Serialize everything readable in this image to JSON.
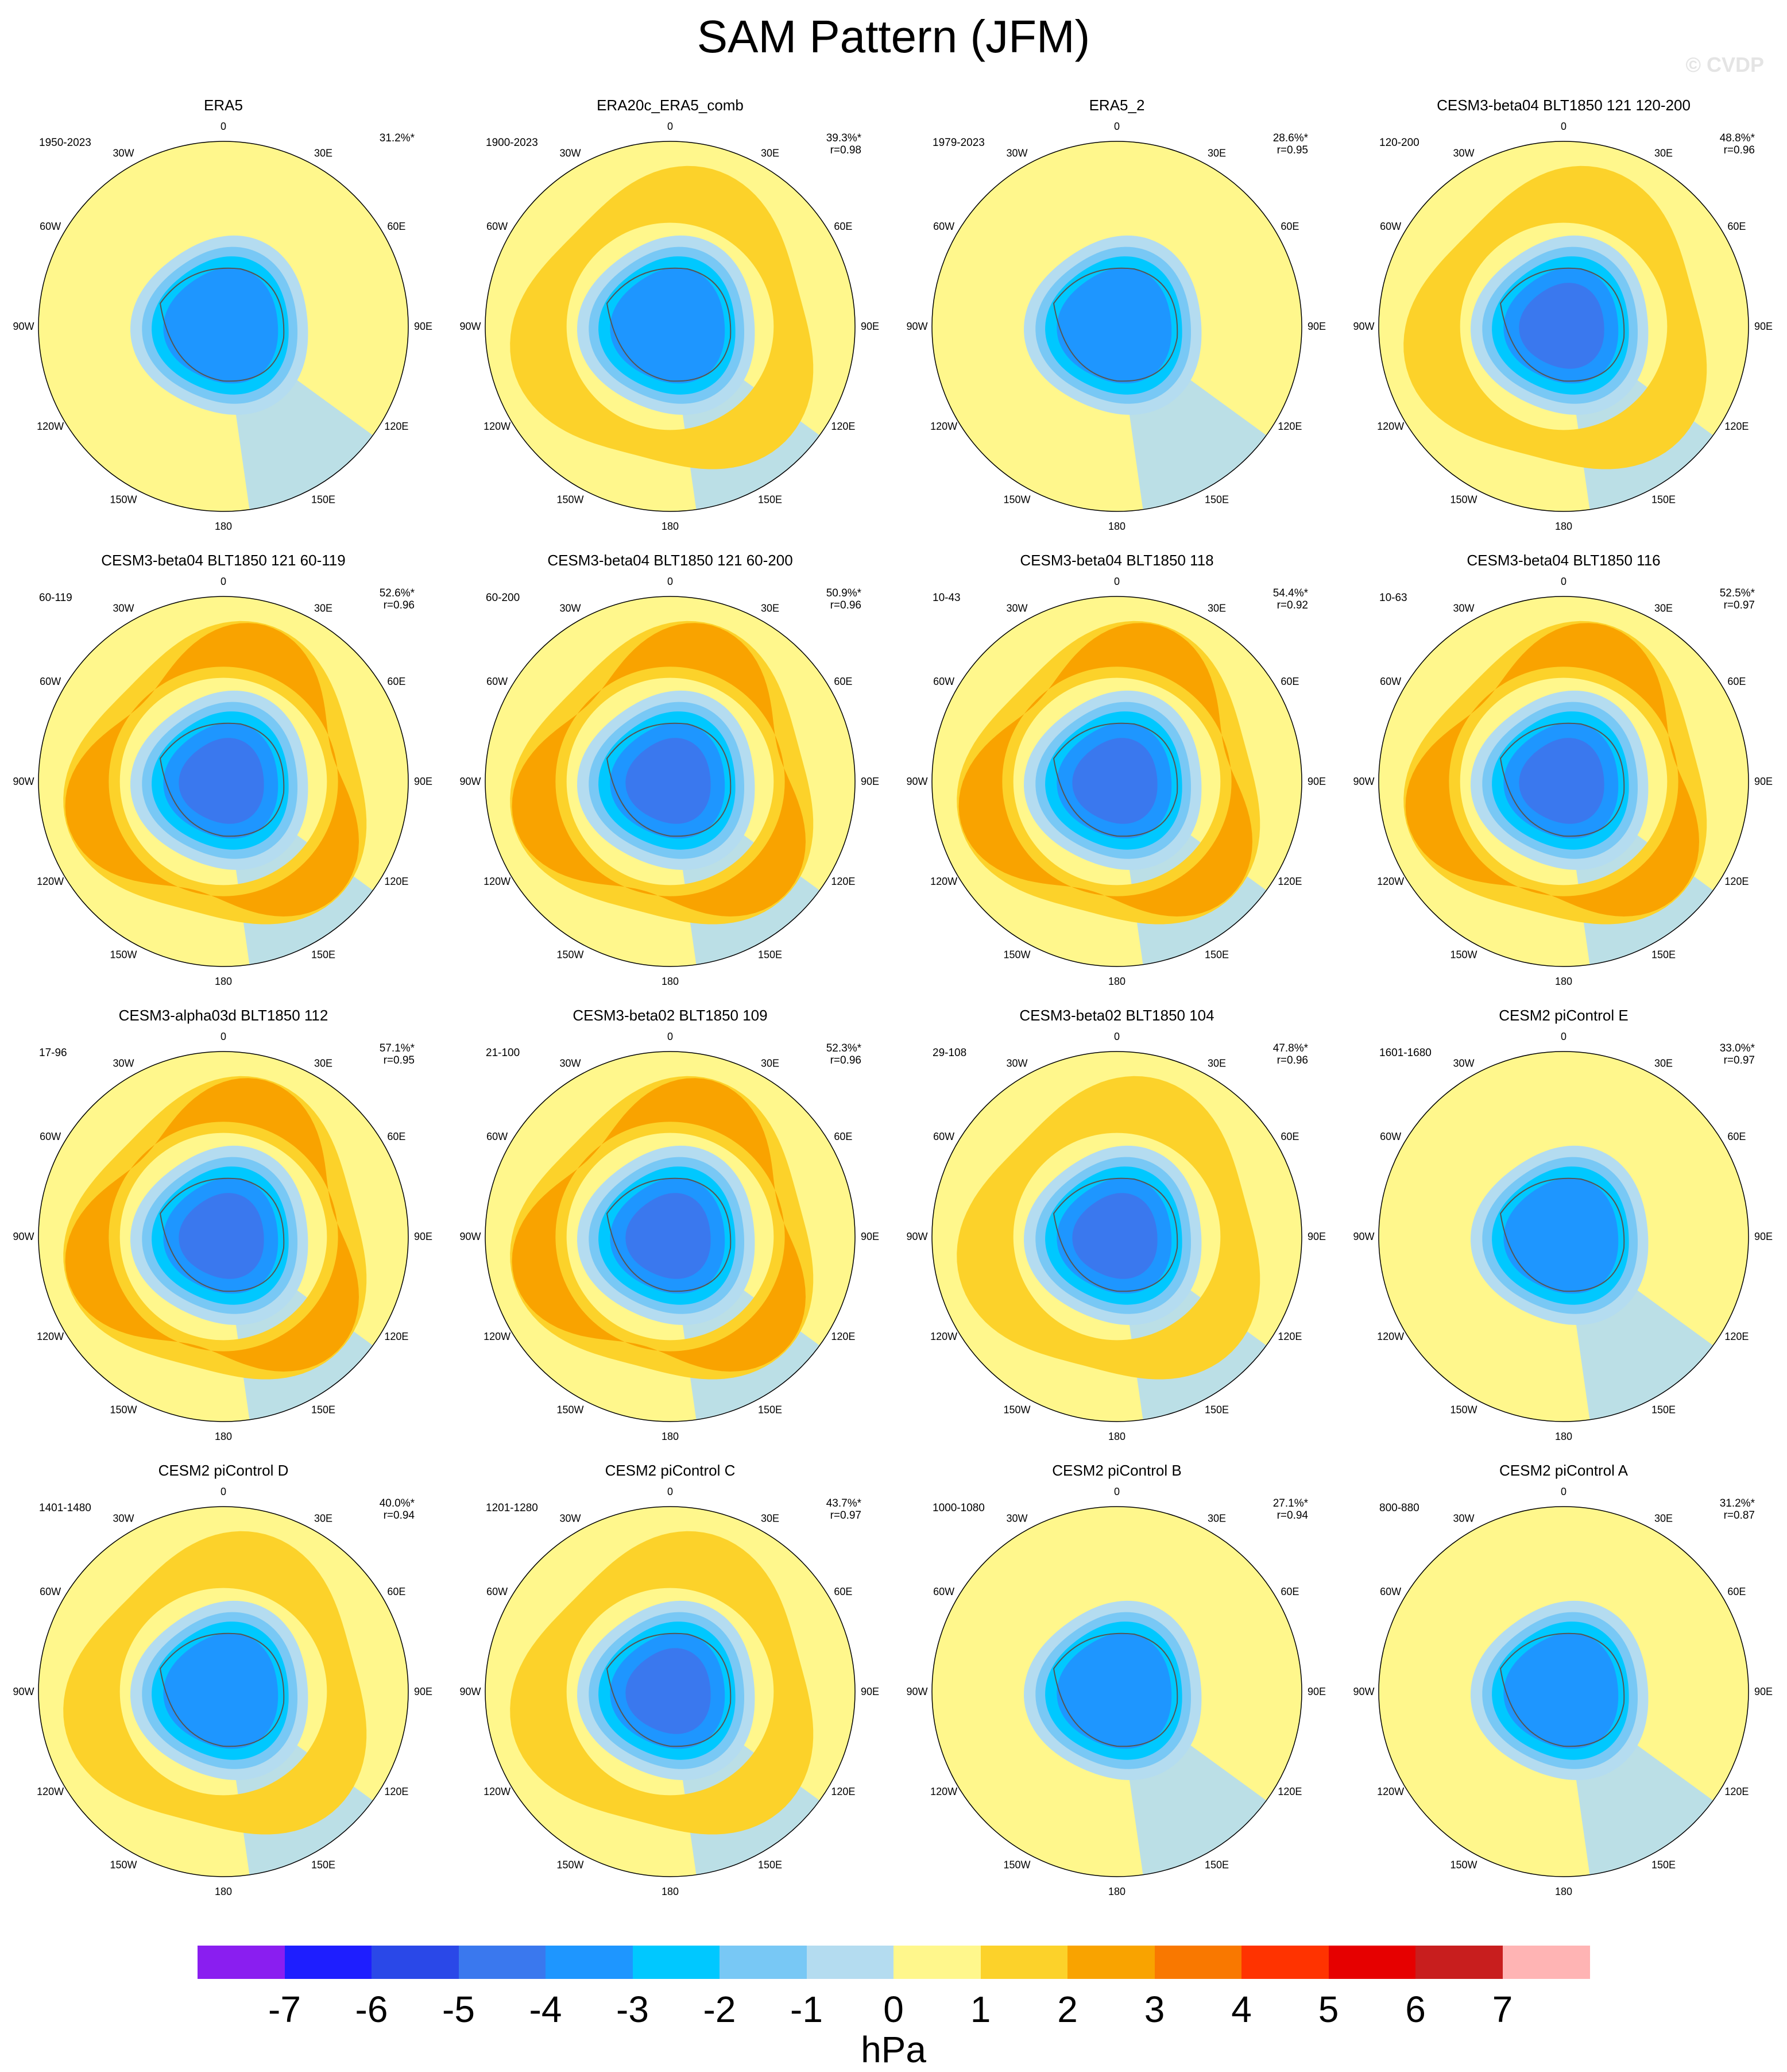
{
  "title": "SAM Pattern (JFM)",
  "watermark": "© CVDP",
  "longitude_labels": [
    "0",
    "30E",
    "60E",
    "90E",
    "120E",
    "150E",
    "180",
    "150W",
    "120W",
    "90W",
    "60W",
    "30W"
  ],
  "panels": [
    {
      "title": "ERA5",
      "years": "1950-2023",
      "pct": "31.2%*",
      "r": "",
      "strength": 0.55
    },
    {
      "title": "ERA20c_ERA5_comb",
      "years": "1900-2023",
      "pct": "39.3%*",
      "r": "r=0.98",
      "strength": 0.75
    },
    {
      "title": "ERA5_2",
      "years": "1979-2023",
      "pct": "28.6%*",
      "r": "r=0.95",
      "strength": 0.55
    },
    {
      "title": "CESM3-beta04 BLT1850 121 120-200",
      "years": "120-200",
      "pct": "48.8%*",
      "r": "r=0.96",
      "strength": 0.95
    },
    {
      "title": "CESM3-beta04 BLT1850 121 60-119",
      "years": "60-119",
      "pct": "52.6%*",
      "r": "r=0.96",
      "strength": 1.0
    },
    {
      "title": "CESM3-beta04 BLT1850 121 60-200",
      "years": "60-200",
      "pct": "50.9%*",
      "r": "r=0.96",
      "strength": 1.0
    },
    {
      "title": "CESM3-beta04 BLT1850 118",
      "years": "10-43",
      "pct": "54.4%*",
      "r": "r=0.92",
      "strength": 1.05
    },
    {
      "title": "CESM3-beta04 BLT1850 116",
      "years": "10-63",
      "pct": "52.5%*",
      "r": "r=0.97",
      "strength": 1.0
    },
    {
      "title": "CESM3-alpha03d BLT1850 112",
      "years": "17-96",
      "pct": "57.1%*",
      "r": "r=0.95",
      "strength": 1.05
    },
    {
      "title": "CESM3-beta02 BLT1850 109",
      "years": "21-100",
      "pct": "52.3%*",
      "r": "r=0.96",
      "strength": 1.0
    },
    {
      "title": "CESM3-beta02 BLT1850 104",
      "years": "29-108",
      "pct": "47.8%*",
      "r": "r=0.96",
      "strength": 0.9
    },
    {
      "title": "CESM2 piControl E",
      "years": "1601-1680",
      "pct": "33.0%*",
      "r": "r=0.97",
      "strength": 0.7
    },
    {
      "title": "CESM2 piControl D",
      "years": "1401-1480",
      "pct": "40.0%*",
      "r": "r=0.94",
      "strength": 0.8
    },
    {
      "title": "CESM2 piControl C",
      "years": "1201-1280",
      "pct": "43.7%*",
      "r": "r=0.97",
      "strength": 0.85
    },
    {
      "title": "CESM2 piControl B",
      "years": "1000-1080",
      "pct": "27.1%*",
      "r": "r=0.94",
      "strength": 0.6
    },
    {
      "title": "CESM2 piControl A",
      "years": "800-880",
      "pct": "31.2%*",
      "r": "r=0.87",
      "strength": 0.65
    }
  ],
  "colorbar": {
    "colors": [
      "#8a1ef0",
      "#1e1eff",
      "#2a48e8",
      "#3a78ee",
      "#1e96ff",
      "#00c8ff",
      "#78c8f5",
      "#b4dcf0",
      "#fff78c",
      "#fcd22a",
      "#f9a300",
      "#f97800",
      "#ff3300",
      "#e60000",
      "#c81e1e",
      "#ffb4b4"
    ],
    "ticks": [
      "-7",
      "-6",
      "-5",
      "-4",
      "-3",
      "-2",
      "-1",
      "0",
      "1",
      "2",
      "3",
      "4",
      "5",
      "6",
      "7"
    ],
    "units": "hPa"
  }
}
